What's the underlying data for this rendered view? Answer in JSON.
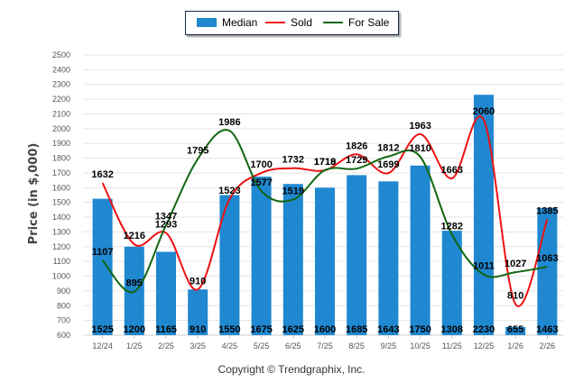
{
  "legend": {
    "median_label": "Median",
    "sold_label": "Sold",
    "forsale_label": "For Sale"
  },
  "copyright": "Copyright © Trendgraphix, Inc.",
  "chart_data": {
    "type": "bar",
    "title": "",
    "xlabel": "",
    "ylabel": "Price (in $,000)",
    "ylim": [
      600,
      2500
    ],
    "ytick_step": 100,
    "grid": true,
    "legend_position": "top-center",
    "categories": [
      "12/24",
      "1/25",
      "2/25",
      "3/25",
      "4/25",
      "5/25",
      "6/25",
      "7/25",
      "8/25",
      "9/25",
      "10/25",
      "11/25",
      "12/25",
      "1/26",
      "2/26"
    ],
    "series": [
      {
        "name": "Median",
        "kind": "bar",
        "color": "#1f88d0",
        "values": [
          1525,
          1200,
          1165,
          910,
          1550,
          1675,
          1625,
          1600,
          1685,
          1643,
          1750,
          1308,
          2230,
          655,
          1463
        ]
      },
      {
        "name": "Sold",
        "kind": "line",
        "color": "#ee1111",
        "values": [
          1632,
          1216,
          1293,
          910,
          1523,
          1700,
          1732,
          1718,
          1826,
          1699,
          1963,
          1663,
          2060,
          810,
          1385
        ]
      },
      {
        "name": "For Sale",
        "kind": "line",
        "color": "#116611",
        "values": [
          1107,
          895,
          1347,
          1795,
          1986,
          1577,
          1519,
          1719,
          1729,
          1812,
          1810,
          1282,
          1011,
          1027,
          1063
        ]
      }
    ]
  }
}
